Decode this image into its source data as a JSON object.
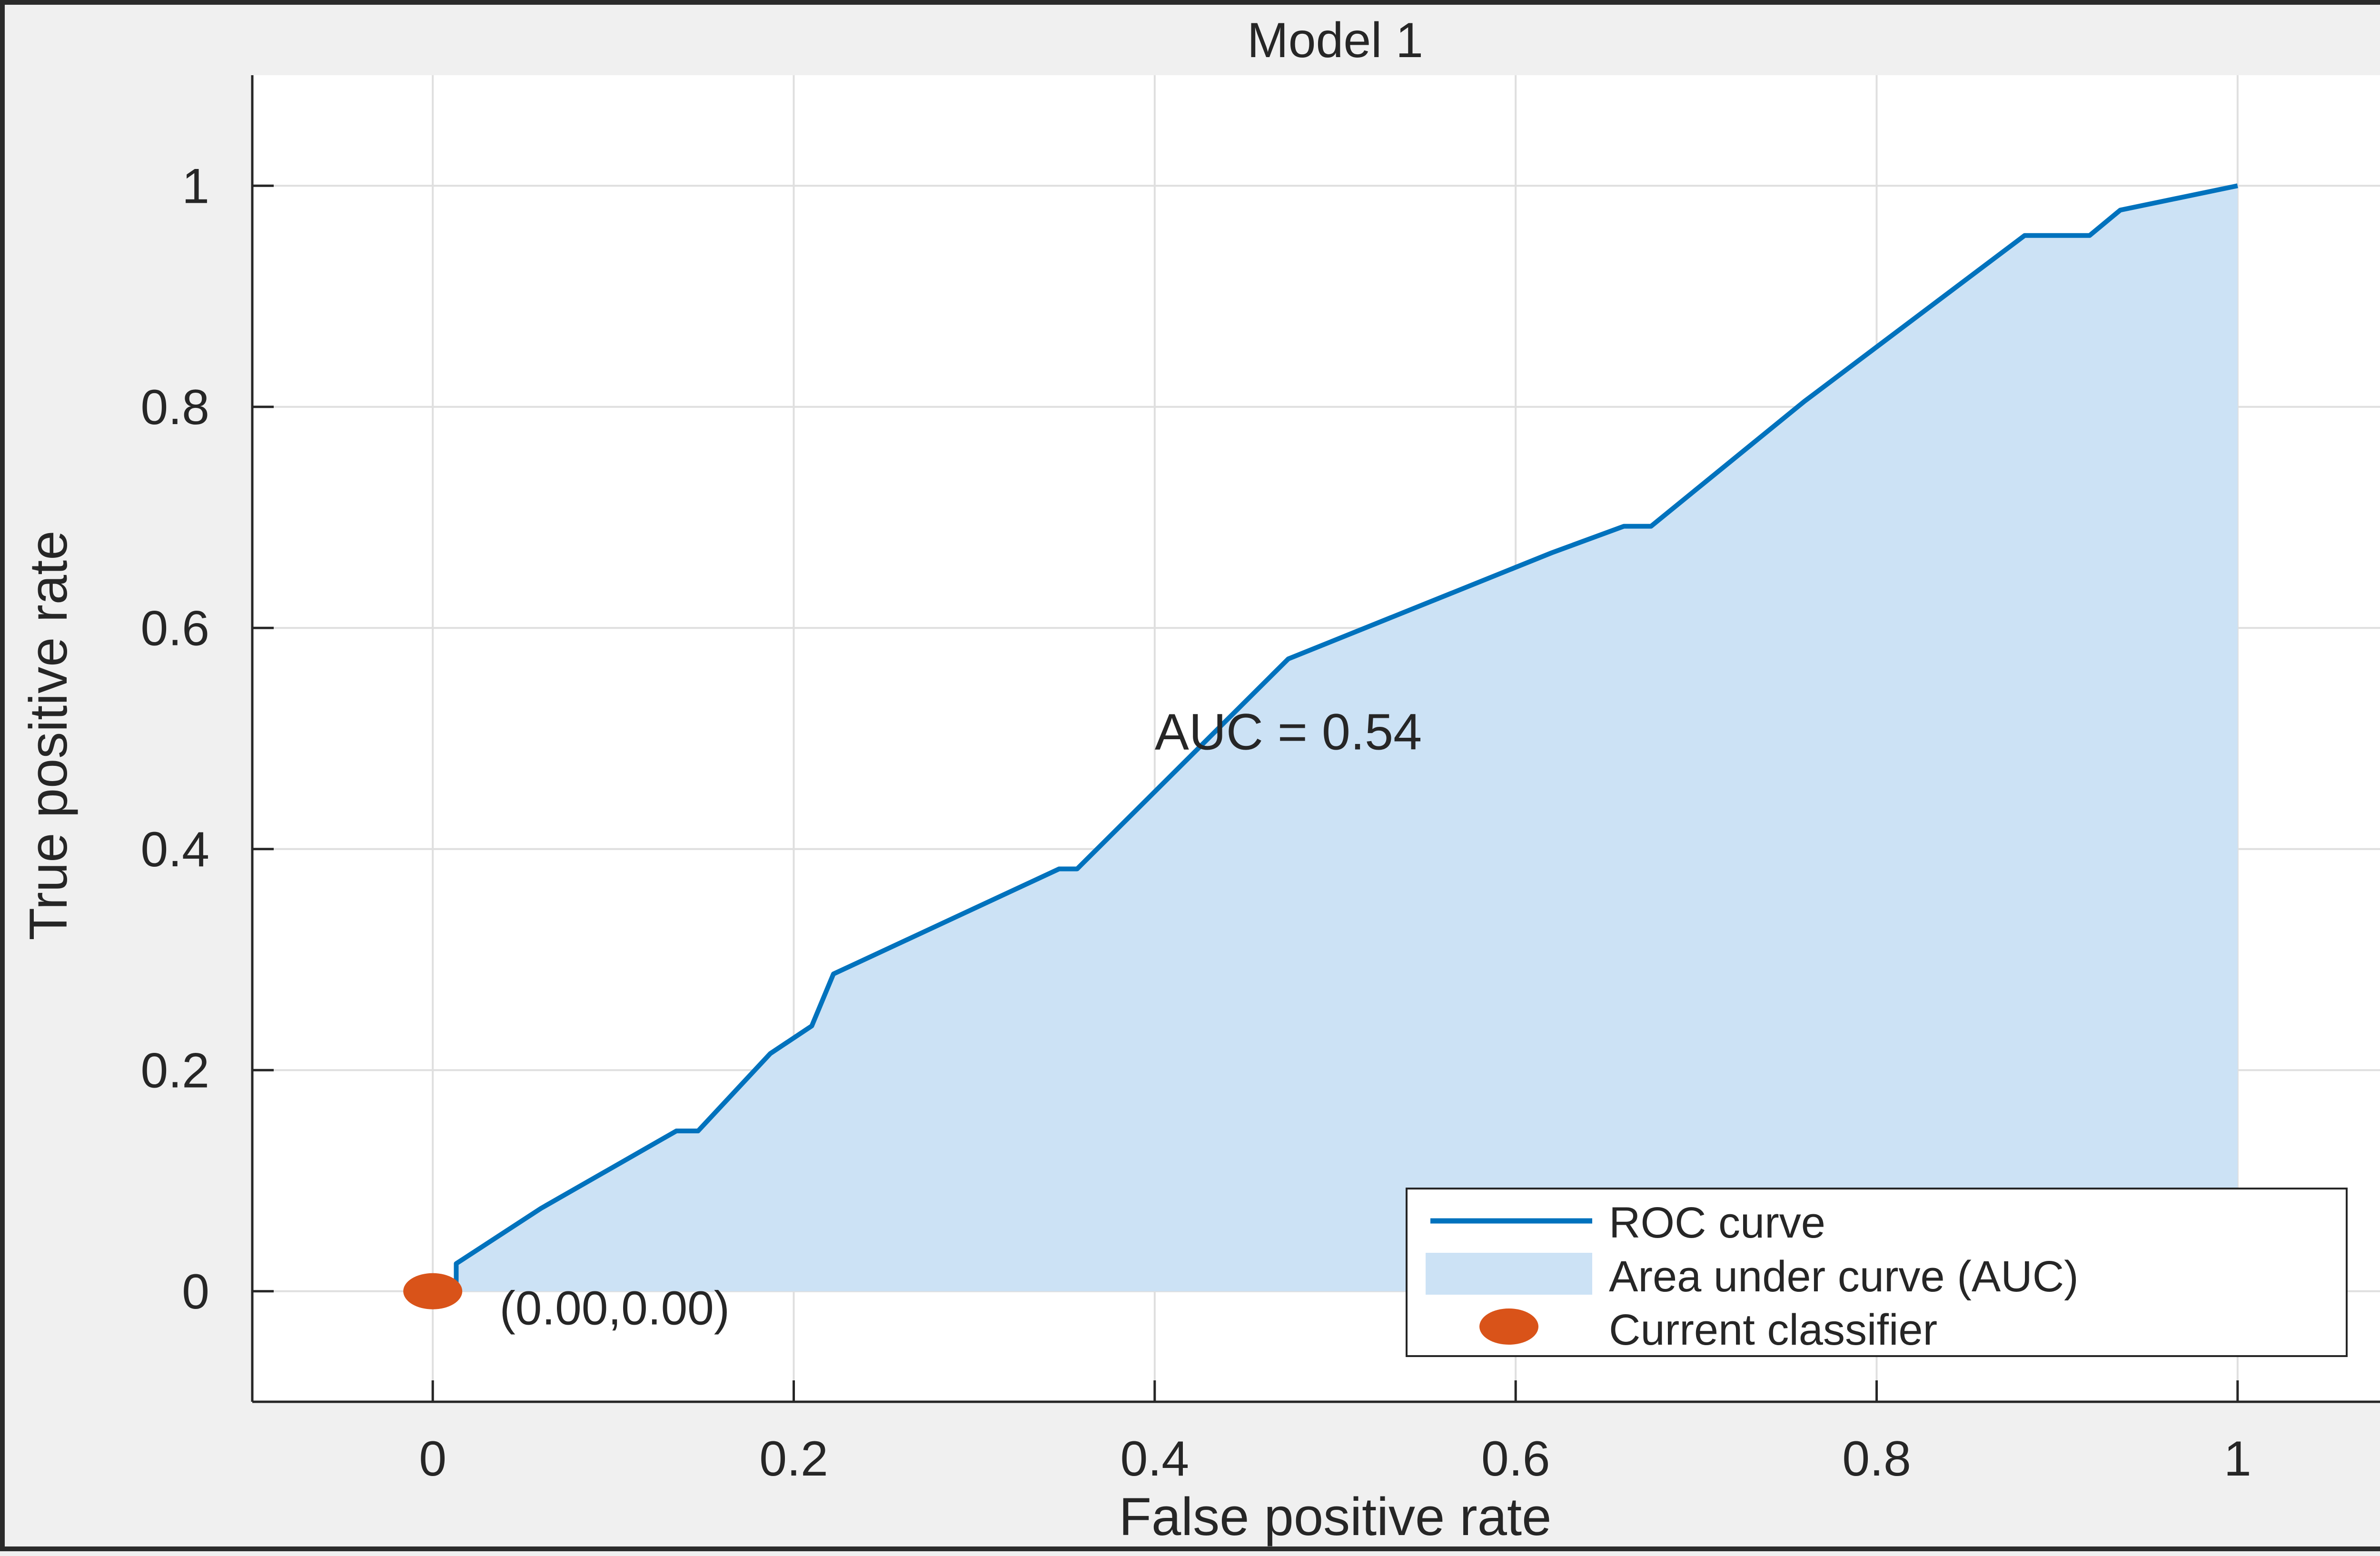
{
  "chart_data": {
    "type": "area",
    "title": "Model 1",
    "xlabel": "False positive rate",
    "ylabel": "True positive rate",
    "xlim": [
      -0.1,
      1.1
    ],
    "ylim": [
      -0.1,
      1.1
    ],
    "xticks": [
      0,
      0.2,
      0.4,
      0.6,
      0.8,
      1
    ],
    "yticks": [
      0,
      0.2,
      0.4,
      0.6,
      0.8,
      1
    ],
    "xtick_labels": [
      "0",
      "0.2",
      "0.4",
      "0.6",
      "0.8",
      "1"
    ],
    "ytick_labels": [
      "0",
      "0.2",
      "0.4",
      "0.6",
      "0.8",
      "1"
    ],
    "grid": true,
    "legend_position": "bottom-right",
    "series": [
      {
        "name": "ROC curve",
        "color": "#0072bd",
        "x": [
          0,
          0.013,
          0.013,
          0.06,
          0.135,
          0.147,
          0.187,
          0.21,
          0.222,
          0.347,
          0.357,
          0.474,
          0.62,
          0.66,
          0.675,
          0.76,
          0.882,
          0.918,
          0.935,
          1.0
        ],
        "y": [
          0,
          0,
          0.025,
          0.075,
          0.145,
          0.145,
          0.215,
          0.24,
          0.287,
          0.382,
          0.382,
          0.572,
          0.668,
          0.692,
          0.692,
          0.805,
          0.955,
          0.955,
          0.978,
          1.0
        ]
      },
      {
        "name": "Area under curve (AUC)",
        "color": "#cce2f5",
        "fill_of": "ROC curve"
      },
      {
        "name": "Current classifier",
        "color": "#d95319",
        "x": [
          0
        ],
        "y": [
          0
        ]
      }
    ],
    "annotations": [
      {
        "text": "AUC = 0.54",
        "x": 0.4,
        "y": 0.49
      },
      {
        "text": "(0.00,0.00)",
        "x": 0.037,
        "y": -0.03
      }
    ],
    "colors": {
      "figure_background": "#f0f0f0",
      "axes_background": "#ffffff",
      "grid": "#dfdfdf",
      "axis_line": "#262626"
    }
  }
}
